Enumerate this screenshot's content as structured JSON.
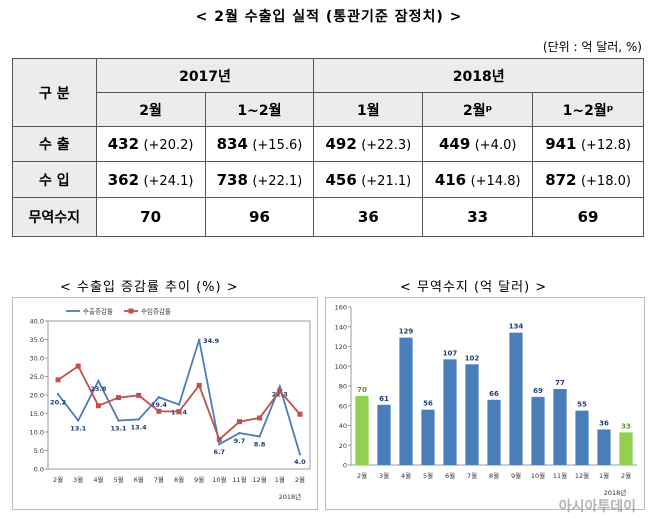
{
  "title": "< 2월 수출입 실적 (통관기준 잠정치) >",
  "unit": "(단위 : 억 달러, %)",
  "table": {
    "corner": "구 분",
    "years": [
      "2017년",
      "2018년"
    ],
    "periods": [
      "2월",
      "1~2월",
      "1월",
      "2월ᵖ",
      "1~2월ᵖ"
    ],
    "rows": [
      {
        "label": "수 출",
        "cells": [
          {
            "value": 432,
            "change": "(+20.2)"
          },
          {
            "value": 834,
            "change": "(+15.6)"
          },
          {
            "value": 492,
            "change": "(+22.3)"
          },
          {
            "value": 449,
            "change": "(+4.0)"
          },
          {
            "value": 941,
            "change": "(+12.8)"
          }
        ]
      },
      {
        "label": "수 입",
        "cells": [
          {
            "value": 362,
            "change": "(+24.1)"
          },
          {
            "value": 738,
            "change": "(+22.1)"
          },
          {
            "value": 456,
            "change": "(+21.1)"
          },
          {
            "value": 416,
            "change": "(+14.8)"
          },
          {
            "value": 872,
            "change": "(+18.0)"
          }
        ]
      },
      {
        "label": "무역수지",
        "cells": [
          {
            "value": 70
          },
          {
            "value": 96
          },
          {
            "value": 36
          },
          {
            "value": 33
          },
          {
            "value": 69
          }
        ]
      }
    ]
  },
  "chart_data": [
    {
      "type": "line",
      "title": "< 수출입 증감률 추이 (%) >",
      "categories": [
        "2월",
        "3월",
        "4월",
        "5월",
        "6월",
        "7월",
        "8월",
        "9월",
        "10월",
        "11월",
        "12월",
        "1월",
        "2월"
      ],
      "x_sublabel": "2018년",
      "series": [
        {
          "name": "수출증감률",
          "color": "#4a7ebb",
          "marker": "none",
          "values": [
            20.2,
            13.1,
            23.8,
            13.1,
            13.4,
            19.4,
            17.4,
            34.9,
            6.7,
            9.7,
            8.8,
            22.3,
            4.0
          ],
          "value_labels": [
            "20.2",
            "13.1",
            "23.8",
            "13.1",
            "13.4",
            "19.4",
            "17.4",
            "34.9",
            "6.7",
            "9.7",
            "8.8",
            "22.3",
            "4.0"
          ]
        },
        {
          "name": "수입증감률",
          "color": "#c0504d",
          "marker": "square",
          "values": [
            24.1,
            27.8,
            17.1,
            19.3,
            19.9,
            15.6,
            15.5,
            22.6,
            8.0,
            12.8,
            13.8,
            21.1,
            14.8
          ]
        }
      ],
      "ylim": [
        0,
        40
      ],
      "yticks": [
        {
          "value": 0,
          "label": "0.0"
        },
        {
          "value": 5,
          "label": "5.0"
        },
        {
          "value": 10,
          "label": "10.0"
        },
        {
          "value": 15,
          "label": "15.0"
        },
        {
          "value": 20,
          "label": "20.0"
        },
        {
          "value": 25,
          "label": "25.0"
        },
        {
          "value": 30,
          "label": "30.0"
        },
        {
          "value": 35,
          "label": "35.0"
        },
        {
          "value": 40,
          "label": "40.0"
        }
      ],
      "grid": false,
      "legend": "top-left"
    },
    {
      "type": "bar",
      "title": "< 무역수지 (억 달러) >",
      "categories": [
        "2월",
        "3월",
        "4월",
        "5월",
        "6월",
        "7월",
        "8월",
        "9월",
        "10월",
        "11월",
        "12월",
        "1월",
        "2월"
      ],
      "x_sublabel": "2018년",
      "values": [
        70,
        61,
        129,
        56,
        107,
        102,
        66,
        134,
        69,
        77,
        55,
        36,
        33
      ],
      "colors": [
        "#92d050",
        "#4a7ebb",
        "#4a7ebb",
        "#4a7ebb",
        "#4a7ebb",
        "#4a7ebb",
        "#4a7ebb",
        "#4a7ebb",
        "#4a7ebb",
        "#4a7ebb",
        "#4a7ebb",
        "#4a7ebb",
        "#92d050"
      ],
      "ylim": [
        0,
        160
      ],
      "yticks": [
        0,
        20,
        40,
        60,
        80,
        100,
        120,
        140,
        160
      ],
      "grid": false
    }
  ],
  "watermark": "아시아투데이"
}
